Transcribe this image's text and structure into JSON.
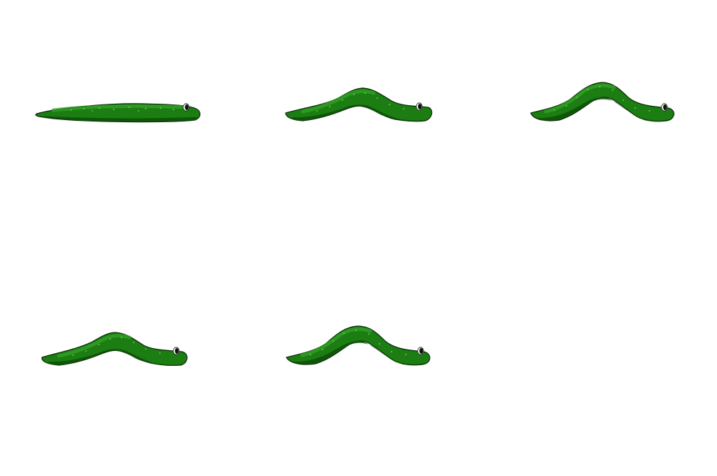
{
  "sprite_sheet": {
    "grid": {
      "columns": 3,
      "rows": 2
    },
    "frames": [
      {
        "id": 1,
        "icon": "worm-flat-icon"
      },
      {
        "id": 2,
        "icon": "worm-arch-low-icon"
      },
      {
        "id": 3,
        "icon": "worm-arch-high-icon"
      },
      {
        "id": 4,
        "icon": "worm-arch-low-icon"
      },
      {
        "id": 5,
        "icon": "worm-arch-high-icon"
      },
      {
        "id": 6,
        "icon": "empty-frame"
      }
    ]
  },
  "colors": {
    "background": "#ffffff",
    "body_fill": "#1b7d12",
    "body_highlight": "#35a52a",
    "body_shadow": "#0d4f08",
    "outline": "#0a2a06",
    "speckle": "#8fd07a",
    "eye_white": "#ffffff",
    "eye_pupil": "#111111"
  }
}
